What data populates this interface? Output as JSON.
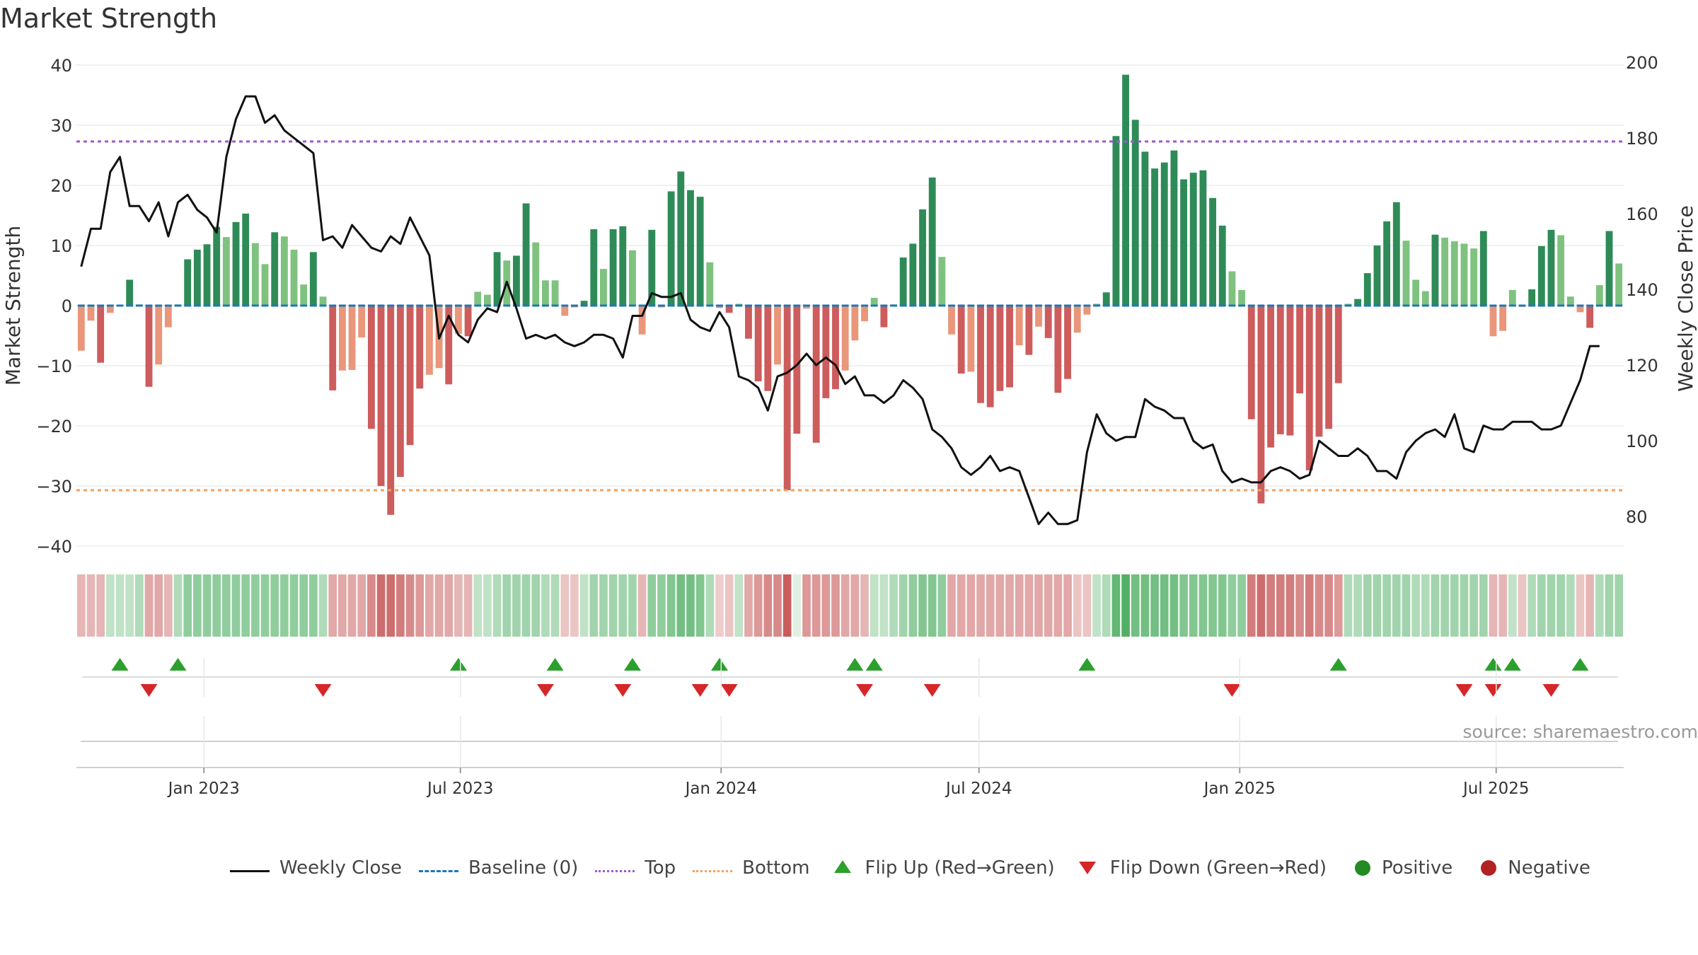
{
  "title": "Market Strength",
  "source": "source: sharemaestro.com",
  "colors": {
    "strong_green": "#2e8b57",
    "light_green": "#7fc27f",
    "strong_red": "#cd5c5c",
    "light_red": "#e9967a",
    "close_line": "#111111",
    "baseline": "#1f77b4",
    "top": "#9b59d0",
    "bottom": "#f0a060",
    "flip_up": "#2ca02c",
    "flip_down": "#d62728"
  },
  "legend": [
    {
      "key": "weekly_close",
      "label": "Weekly Close",
      "icon": "line"
    },
    {
      "key": "baseline",
      "label": "Baseline (0)",
      "icon": "dashed-line"
    },
    {
      "key": "top",
      "label": "Top",
      "icon": "dotted-line"
    },
    {
      "key": "bottom",
      "label": "Bottom",
      "icon": "dotted-line"
    },
    {
      "key": "flip_up",
      "label": "Flip Up (Red→Green)",
      "icon": "triangle-up"
    },
    {
      "key": "flip_down",
      "label": "Flip Down (Green→Red)",
      "icon": "triangle-down"
    },
    {
      "key": "positive",
      "label": "Positive",
      "icon": "circle"
    },
    {
      "key": "negative",
      "label": "Negative",
      "icon": "circle"
    }
  ],
  "chart_data": {
    "type": "bar",
    "title": "Market Strength",
    "ylabel": "Market Strength",
    "ylabel_right": "Weekly Close Price",
    "ylim": [
      -40,
      40
    ],
    "y2lim": [
      70,
      200
    ],
    "yticks": [
      40,
      30,
      20,
      10,
      0,
      -10,
      -20,
      -30,
      -40
    ],
    "y2ticks": [
      200,
      180,
      160,
      140,
      120,
      100,
      80
    ],
    "top_level": 27.3,
    "bottom_level": -30.7,
    "baseline": 0,
    "x_start": "2022-10-03",
    "x_end": "2025-09-29",
    "x_tick_labels": [
      {
        "date": "2023-01-01",
        "label": "Jan 2023"
      },
      {
        "date": "2023-07-01",
        "label": "Jul 2023"
      },
      {
        "date": "2024-01-01",
        "label": "Jan 2024"
      },
      {
        "date": "2024-07-01",
        "label": "Jul 2024"
      },
      {
        "date": "2025-01-01",
        "label": "Jan 2025"
      },
      {
        "date": "2025-07-01",
        "label": "Jul 2025"
      }
    ],
    "strength_values": [
      -7.5,
      -2.5,
      -9.5,
      -1.2,
      0.1,
      4.3,
      0.2,
      -13.5,
      -9.8,
      -3.6,
      0.2,
      7.7,
      9.3,
      10.2,
      13.1,
      11.4,
      13.9,
      15.3,
      10.4,
      6.9,
      12.2,
      11.5,
      9.3,
      3.5,
      8.9,
      1.5,
      -14.1,
      -10.8,
      -10.7,
      -5.3,
      -20.5,
      -30.0,
      -34.8,
      -28.5,
      -23.2,
      -13.8,
      -11.5,
      -10.4,
      -13.1,
      -4.7,
      -5.1,
      2.3,
      1.8,
      8.9,
      7.5,
      8.3,
      17.0,
      10.5,
      4.2,
      4.2,
      -1.7,
      -0.3,
      0.8,
      12.7,
      6.1,
      12.7,
      13.2,
      9.2,
      -4.8,
      12.6,
      -0.3,
      19.0,
      22.3,
      19.2,
      18.1,
      7.2,
      -0.4,
      -1.2,
      0.3,
      -5.5,
      -12.6,
      -14.2,
      -9.8,
      -30.7,
      -21.3,
      -0.5,
      -22.8,
      -15.4,
      -13.9,
      -10.8,
      -5.8,
      -2.6,
      1.3,
      -3.6,
      0.2,
      8.0,
      10.3,
      16.0,
      21.3,
      8.1,
      -4.8,
      -11.3,
      -11.0,
      -16.2,
      -16.9,
      -14.2,
      -13.6,
      -6.6,
      -8.2,
      -3.5,
      -5.4,
      -14.5,
      -12.2,
      -4.5,
      -1.5,
      0.3,
      2.2,
      28.2,
      38.4,
      30.9,
      25.6,
      22.8,
      23.8,
      25.8,
      21.0,
      22.1,
      22.5,
      17.9,
      13.3,
      5.7,
      2.6,
      -18.9,
      -32.9,
      -23.6,
      -21.4,
      -21.6,
      -14.6,
      -27.4,
      -21.8,
      -20.5,
      -12.9,
      0.3,
      1.1,
      5.4,
      10.0,
      14.0,
      17.2,
      10.8,
      4.3,
      2.4,
      11.8,
      11.3,
      10.7,
      10.3,
      9.5,
      12.4,
      -5.1,
      -4.2,
      2.6,
      -0.2,
      2.7,
      9.9,
      12.6,
      11.7,
      1.5,
      -1.1,
      -3.7,
      3.4,
      12.4,
      7.0
    ],
    "weekly_close": [
      146,
      156,
      156,
      171,
      175,
      162,
      162,
      158,
      163,
      154,
      163,
      165,
      161,
      159,
      155,
      175,
      185,
      191,
      191,
      184,
      186,
      182,
      180,
      178,
      176,
      153,
      154,
      151,
      157,
      154,
      151,
      150,
      154,
      152,
      159,
      154,
      149,
      127,
      133,
      128,
      126,
      132,
      135,
      134,
      142,
      135,
      127,
      128,
      127,
      128,
      126,
      125,
      126,
      128,
      128,
      127,
      122,
      133,
      133,
      139,
      138,
      138,
      139,
      132,
      130,
      129,
      134,
      130,
      117,
      116,
      114,
      108,
      117,
      118,
      120,
      123,
      120,
      122,
      120,
      115,
      117,
      112,
      112,
      110,
      112,
      116,
      114,
      111,
      103,
      101,
      98,
      93,
      91,
      93,
      96,
      92,
      93,
      92,
      85,
      78,
      81,
      78,
      78,
      79,
      97,
      107,
      102,
      100,
      101,
      101,
      111,
      109,
      108,
      106,
      106,
      100,
      98,
      99,
      92,
      89,
      90,
      89,
      89,
      92,
      93,
      92,
      90,
      91,
      100,
      98,
      96,
      96,
      98,
      96,
      92,
      92,
      90,
      97,
      100,
      102,
      103,
      101,
      107,
      98,
      97,
      104,
      103,
      103,
      105,
      105,
      105,
      103,
      103,
      104,
      110,
      116,
      125,
      125
    ],
    "regime_shade": [
      -0.3,
      -0.3,
      -0.3,
      0.2,
      0.2,
      0.2,
      0.3,
      -0.4,
      -0.4,
      -0.3,
      0.3,
      0.5,
      0.5,
      0.5,
      0.5,
      0.5,
      0.5,
      0.5,
      0.5,
      0.5,
      0.5,
      0.5,
      0.5,
      0.5,
      0.5,
      0.3,
      -0.4,
      -0.4,
      -0.4,
      -0.4,
      -0.6,
      -0.8,
      -0.8,
      -0.7,
      -0.6,
      -0.5,
      -0.4,
      -0.4,
      -0.4,
      -0.3,
      -0.3,
      0.2,
      0.2,
      0.3,
      0.4,
      0.4,
      0.4,
      0.4,
      0.3,
      0.3,
      -0.2,
      -0.2,
      0.2,
      0.4,
      0.4,
      0.4,
      0.4,
      0.4,
      -0.3,
      0.5,
      0.5,
      0.6,
      0.7,
      0.7,
      0.6,
      0.3,
      -0.15,
      -0.2,
      0.2,
      -0.4,
      -0.5,
      -0.6,
      -0.6,
      -0.9,
      0.0,
      -0.5,
      -0.5,
      -0.5,
      -0.5,
      -0.4,
      -0.4,
      -0.3,
      0.2,
      0.2,
      0.3,
      0.4,
      0.5,
      0.6,
      0.6,
      0.5,
      -0.4,
      -0.4,
      -0.4,
      -0.4,
      -0.4,
      -0.4,
      -0.4,
      -0.4,
      -0.4,
      -0.4,
      -0.4,
      -0.4,
      -0.4,
      -0.2,
      -0.2,
      0.2,
      0.3,
      0.8,
      0.9,
      0.7,
      0.7,
      0.7,
      0.7,
      0.7,
      0.6,
      0.6,
      0.6,
      0.6,
      0.6,
      0.5,
      0.5,
      -0.7,
      -0.8,
      -0.7,
      -0.7,
      -0.7,
      -0.6,
      -0.7,
      -0.6,
      -0.6,
      -0.5,
      0.3,
      0.3,
      0.4,
      0.4,
      0.4,
      0.4,
      0.4,
      0.3,
      0.3,
      0.4,
      0.4,
      0.4,
      0.4,
      0.4,
      0.4,
      -0.3,
      -0.3,
      0.2,
      -0.2,
      0.3,
      0.4,
      0.4,
      0.4,
      0.3,
      -0.2,
      -0.3,
      0.3,
      0.4,
      0.4
    ],
    "flip_up_index": [
      4,
      10,
      39,
      49,
      57,
      66,
      80,
      82,
      104,
      130,
      146,
      148,
      155
    ],
    "flip_down_index": [
      7,
      25,
      48,
      56,
      64,
      67,
      81,
      88,
      119,
      143,
      146,
      152
    ]
  }
}
